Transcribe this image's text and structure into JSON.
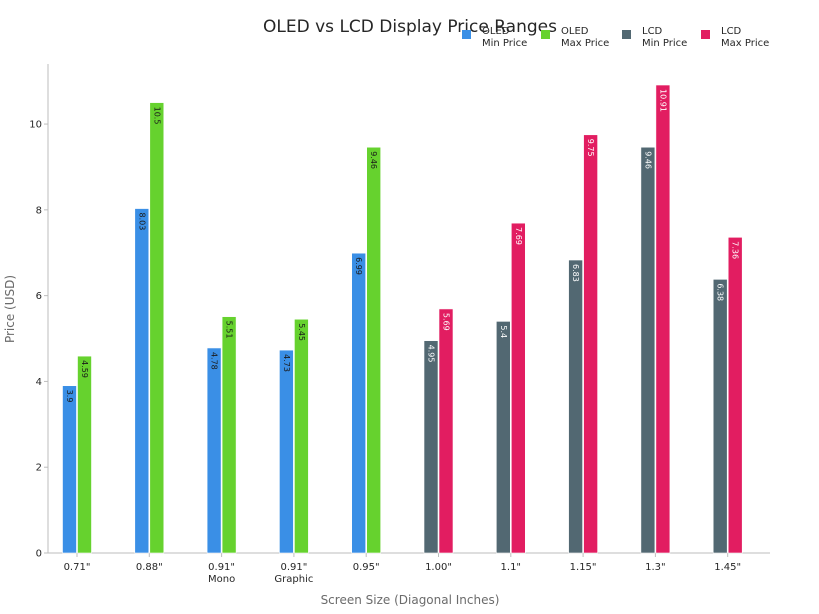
{
  "chart_data": {
    "type": "bar",
    "title": "OLED vs LCD Display Price Ranges",
    "xlabel": "Screen Size (Diagonal Inches)",
    "ylabel": "Price (USD)",
    "ylim": [
      0,
      11.4
    ],
    "yticks": [
      0,
      2,
      4,
      6,
      8,
      10
    ],
    "grid": false,
    "legend_position": "top-right",
    "categories": [
      "0.71\"",
      "0.88\"",
      "0.91\"\nMono",
      "0.91\"\nGraphic",
      "0.95\"",
      "1.00\"",
      "1.1\"",
      "1.15\"",
      "1.3\"",
      "1.45\""
    ],
    "series": [
      {
        "name": "OLED\nMin Price",
        "color": "#3a8fe6",
        "label_color": "#1a1a1a",
        "values": [
          3.9,
          8.03,
          4.78,
          4.73,
          6.99,
          null,
          null,
          null,
          null,
          null
        ]
      },
      {
        "name": "OLED\nMax Price",
        "color": "#66d22e",
        "label_color": "#1a1a1a",
        "values": [
          4.59,
          10.5,
          5.51,
          5.45,
          9.46,
          null,
          null,
          null,
          null,
          null
        ]
      },
      {
        "name": "LCD\nMin Price",
        "color": "#526872",
        "label_color": "#ffffff",
        "values": [
          null,
          null,
          null,
          null,
          null,
          4.95,
          5.4,
          6.83,
          9.46,
          6.38
        ]
      },
      {
        "name": "LCD\nMax Price",
        "color": "#e21d61",
        "label_color": "#ffffff",
        "values": [
          null,
          null,
          null,
          null,
          null,
          5.69,
          7.69,
          9.75,
          10.91,
          7.36
        ]
      }
    ]
  }
}
